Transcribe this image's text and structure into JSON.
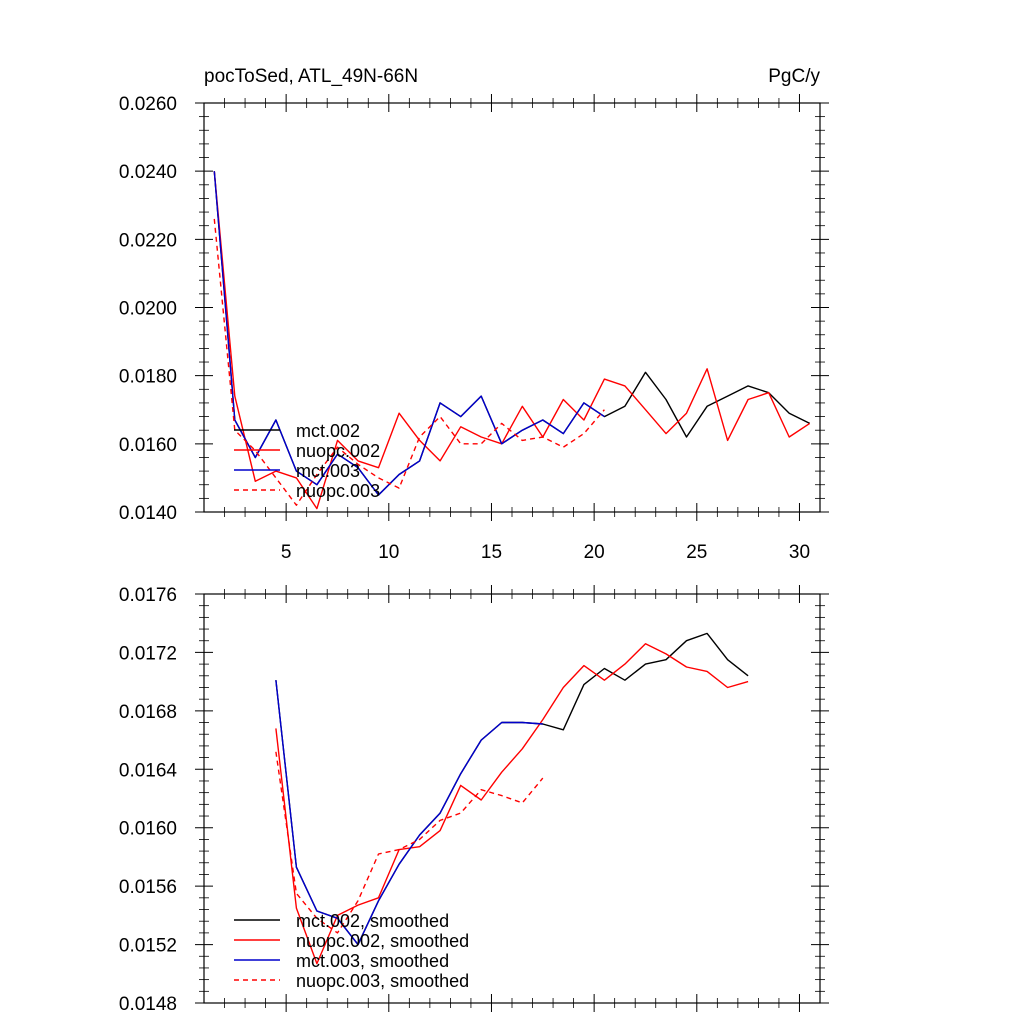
{
  "header": {
    "title_left": "pocToSed, ATL_49N-66N",
    "title_right": "PgC/y"
  },
  "colors": {
    "mct.002": "#000000",
    "nuopc.002": "#ff0000",
    "mct.003": "#0000cc",
    "nuopc.003": "#ff0000"
  },
  "chart_data": [
    {
      "type": "line",
      "title": "pocToSed, ATL_49N-66N",
      "units": "PgC/y",
      "xlim": [
        1,
        31
      ],
      "ylim": [
        0.014,
        0.026
      ],
      "xticks": [
        5,
        10,
        15,
        20,
        25,
        30
      ],
      "xtick_labels": [
        "5",
        "10",
        "15",
        "20",
        "25",
        "30"
      ],
      "yticks": [
        0.014,
        0.016,
        0.018,
        0.02,
        0.022,
        0.024,
        0.026
      ],
      "ytick_labels": [
        "0.0140",
        "0.0160",
        "0.0180",
        "0.0200",
        "0.0220",
        "0.0240",
        "0.0260"
      ],
      "legend_location": "lower-left",
      "series": [
        {
          "name": "mct.002",
          "color": "#000000",
          "dash": false,
          "x": [
            1.5,
            2.5,
            3.5,
            4.5,
            5.5,
            6.5,
            7.5,
            8.5,
            9.5,
            10.5,
            11.5,
            12.5,
            13.5,
            14.5,
            15.5,
            16.5,
            17.5,
            18.5,
            19.5,
            20.5,
            21.5,
            22.5,
            23.5,
            24.5,
            25.5,
            26.5,
            27.5,
            28.5,
            29.5,
            30.5
          ],
          "y": [
            0.024,
            0.0167,
            0.0156,
            0.0167,
            0.0152,
            0.0148,
            0.0157,
            0.0153,
            0.0145,
            0.0151,
            0.0155,
            0.0172,
            0.0168,
            0.0174,
            0.016,
            0.0164,
            0.0167,
            0.0163,
            0.0172,
            0.0168,
            0.0171,
            0.0181,
            0.0173,
            0.0162,
            0.0171,
            0.0174,
            0.0177,
            0.0175,
            0.0169,
            0.0166
          ]
        },
        {
          "name": "nuopc.002",
          "color": "#ff0000",
          "dash": false,
          "x": [
            1.5,
            2.5,
            3.5,
            4.5,
            5.5,
            6.5,
            7.5,
            8.5,
            9.5,
            10.5,
            11.5,
            12.5,
            13.5,
            14.5,
            15.5,
            16.5,
            17.5,
            18.5,
            19.5,
            20.5,
            21.5,
            22.5,
            23.5,
            24.5,
            25.5,
            26.5,
            27.5,
            28.5,
            29.5,
            30.5
          ],
          "y": [
            0.024,
            0.0174,
            0.0149,
            0.0152,
            0.015,
            0.0141,
            0.0161,
            0.0155,
            0.0153,
            0.0169,
            0.0161,
            0.0155,
            0.0165,
            0.0162,
            0.016,
            0.0171,
            0.0162,
            0.0173,
            0.0167,
            0.0179,
            0.0177,
            0.017,
            0.0163,
            0.0169,
            0.0182,
            0.0161,
            0.0173,
            0.0175,
            0.0162,
            0.0166
          ]
        },
        {
          "name": "mct.003",
          "color": "#0000cc",
          "dash": false,
          "x": [
            1.5,
            2.5,
            3.5,
            4.5,
            5.5,
            6.5,
            7.5,
            8.5,
            9.5,
            10.5,
            11.5,
            12.5,
            13.5,
            14.5,
            15.5,
            16.5,
            17.5,
            18.5,
            19.5,
            20.5
          ],
          "y": [
            0.024,
            0.0167,
            0.0156,
            0.0167,
            0.0152,
            0.0148,
            0.0157,
            0.0153,
            0.0145,
            0.0151,
            0.0155,
            0.0172,
            0.0168,
            0.0174,
            0.016,
            0.0164,
            0.0167,
            0.0163,
            0.0172,
            0.0168
          ]
        },
        {
          "name": "nuopc.003",
          "color": "#ff0000",
          "dash": true,
          "x": [
            1.5,
            2.5,
            3.5,
            4.5,
            5.5,
            6.5,
            7.5,
            8.5,
            9.5,
            10.5,
            11.5,
            12.5,
            13.5,
            14.5,
            15.5,
            16.5,
            17.5,
            18.5,
            19.5,
            20.5
          ],
          "y": [
            0.0226,
            0.0164,
            0.0158,
            0.015,
            0.0142,
            0.0151,
            0.0159,
            0.0154,
            0.015,
            0.0147,
            0.0162,
            0.0168,
            0.016,
            0.016,
            0.0166,
            0.0161,
            0.0162,
            0.0159,
            0.0163,
            0.017
          ]
        }
      ]
    },
    {
      "type": "line",
      "xlim": [
        1,
        31
      ],
      "ylim": [
        0.0148,
        0.0176
      ],
      "xticks": [
        5,
        10,
        15,
        20,
        25,
        30
      ],
      "xtick_labels": [],
      "yticks": [
        0.0148,
        0.0152,
        0.0156,
        0.016,
        0.0164,
        0.0168,
        0.0172,
        0.0176
      ],
      "ytick_labels": [
        "0.0148",
        "0.0152",
        "0.0156",
        "0.0160",
        "0.0164",
        "0.0168",
        "0.0172",
        "0.0176"
      ],
      "legend_location": "lower-left",
      "series": [
        {
          "name": "mct.002, smoothed",
          "color": "#000000",
          "dash": false,
          "x": [
            4.5,
            5.5,
            6.5,
            7.5,
            8.5,
            9.5,
            10.5,
            11.5,
            12.5,
            13.5,
            14.5,
            15.5,
            16.5,
            17.5,
            18.5,
            19.5,
            20.5,
            21.5,
            22.5,
            23.5,
            24.5,
            25.5,
            26.5,
            27.5
          ],
          "y": [
            0.01701,
            0.01573,
            0.01543,
            0.01538,
            0.0152,
            0.0155,
            0.01575,
            0.01595,
            0.0161,
            0.01637,
            0.0166,
            0.01672,
            0.01672,
            0.01671,
            0.01667,
            0.01698,
            0.01709,
            0.01701,
            0.01712,
            0.01715,
            0.01728,
            0.01733,
            0.01715,
            0.01704
          ]
        },
        {
          "name": "nuopc.002, smoothed",
          "color": "#ff0000",
          "dash": false,
          "x": [
            4.5,
            5.5,
            6.5,
            7.5,
            8.5,
            9.5,
            10.5,
            11.5,
            12.5,
            13.5,
            14.5,
            15.5,
            16.5,
            17.5,
            18.5,
            19.5,
            20.5,
            21.5,
            22.5,
            23.5,
            24.5,
            25.5,
            26.5,
            27.5
          ],
          "y": [
            0.01668,
            0.01545,
            0.01507,
            0.0154,
            0.01547,
            0.01552,
            0.01585,
            0.01587,
            0.01598,
            0.01629,
            0.01619,
            0.01638,
            0.01654,
            0.01674,
            0.01696,
            0.01711,
            0.01701,
            0.01712,
            0.01726,
            0.01719,
            0.0171,
            0.01707,
            0.01696,
            0.017
          ]
        },
        {
          "name": "mct.003, smoothed",
          "color": "#0000cc",
          "dash": false,
          "x": [
            4.5,
            5.5,
            6.5,
            7.5,
            8.5,
            9.5,
            10.5,
            11.5,
            12.5,
            13.5,
            14.5,
            15.5,
            16.5,
            17.5
          ],
          "y": [
            0.01701,
            0.01573,
            0.01543,
            0.01538,
            0.0152,
            0.0155,
            0.01575,
            0.01595,
            0.0161,
            0.01637,
            0.0166,
            0.01672,
            0.01672,
            0.01671
          ]
        },
        {
          "name": "nuopc.003, smoothed",
          "color": "#ff0000",
          "dash": true,
          "x": [
            4.5,
            5.5,
            6.5,
            7.5,
            8.5,
            9.5,
            10.5,
            11.5,
            12.5,
            13.5,
            14.5,
            15.5,
            16.5,
            17.5
          ],
          "y": [
            0.01652,
            0.01555,
            0.01538,
            0.01528,
            0.0155,
            0.01582,
            0.01585,
            0.01592,
            0.01605,
            0.0161,
            0.01626,
            0.01622,
            0.01617,
            0.01634
          ]
        }
      ]
    }
  ]
}
